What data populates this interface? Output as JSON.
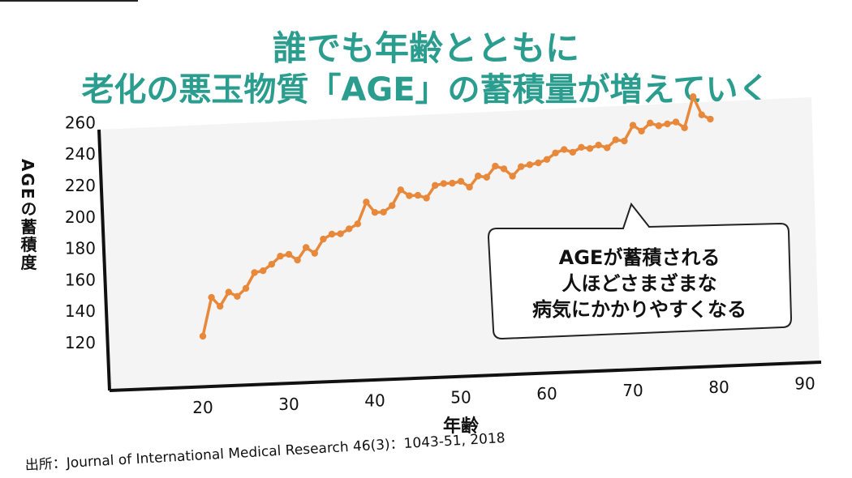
{
  "header": {
    "title_line1": "誰でも年齢とともに",
    "title_line2": "老化の悪玉物質「AGE」の蓄積量が増えていく"
  },
  "callout": {
    "line1": "AGEが蓄積される",
    "line2": "人ほどさまざまな",
    "line3": "病気にかかりやすくなる"
  },
  "source": "出所：Journal of International Medical Research 46(3)：1043-51, 2018",
  "colors": {
    "title": "#2a9d8f",
    "line": "#e8883a",
    "plot_bg": "#f4f4f4"
  },
  "chart_data": {
    "type": "line",
    "xlabel": "年齢",
    "ylabel": "AGEの蓄積度",
    "xlim": [
      15,
      90
    ],
    "ylim": [
      120,
      260
    ],
    "x_ticks": [
      20,
      30,
      40,
      50,
      60,
      70,
      80,
      90
    ],
    "y_ticks": [
      120,
      140,
      160,
      180,
      200,
      220,
      240,
      260
    ],
    "grid": false,
    "series": [
      {
        "x": [
          20,
          21,
          22,
          23,
          24,
          25,
          26,
          27,
          28,
          29,
          30,
          31,
          32,
          33,
          34,
          35,
          36,
          37,
          38,
          39,
          40,
          41,
          42,
          43,
          44,
          45,
          46,
          47,
          48,
          49,
          50,
          51,
          52,
          53,
          54,
          55,
          56,
          57,
          58,
          59,
          60,
          61,
          62,
          63,
          64,
          65,
          66,
          67,
          68,
          69,
          70,
          71,
          72,
          73,
          74,
          75,
          76,
          77,
          78,
          79
        ],
        "values": [
          120,
          145,
          139,
          148,
          145,
          150,
          160,
          161,
          165,
          170,
          171,
          167,
          175,
          171,
          180,
          183,
          183,
          186,
          189,
          203,
          196,
          196,
          200,
          210,
          206,
          206,
          204,
          212,
          213,
          213,
          214,
          210,
          217,
          216,
          223,
          221,
          216,
          222,
          223,
          224,
          226,
          230,
          232,
          230,
          233,
          232,
          234,
          232,
          237,
          236,
          246,
          242,
          247,
          245,
          246,
          247,
          243,
          263,
          251,
          248
        ]
      }
    ]
  }
}
